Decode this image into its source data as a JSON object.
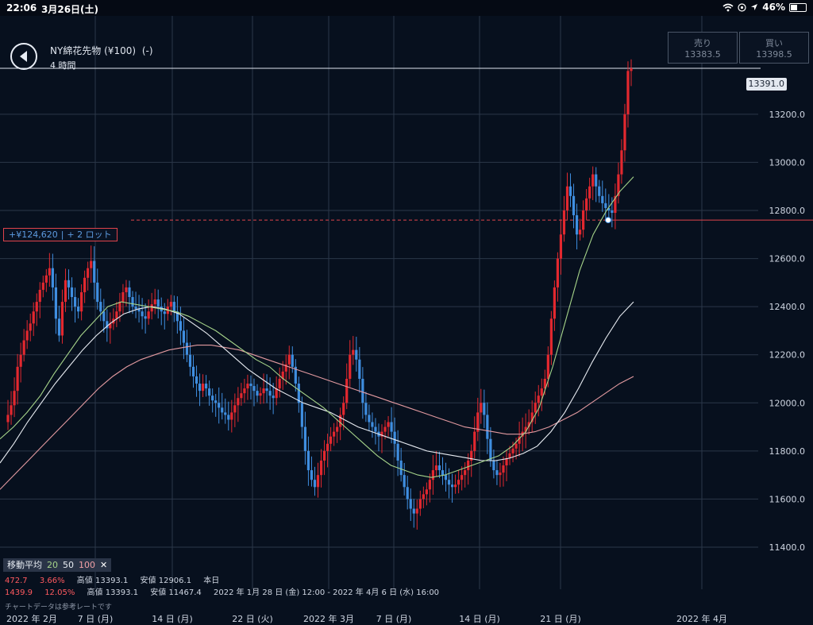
{
  "status_bar": {
    "time": "22:06",
    "date": "3月26日(土)",
    "battery": "46%",
    "icons": [
      "wifi-icon",
      "location-icon",
      "battery-icon"
    ]
  },
  "header": {
    "instrument": "NY綿花先物 (¥100)",
    "change": "(-)",
    "interval": "4 時間",
    "back_icon": "chevron-left-icon"
  },
  "quotes": {
    "sell_label": "売り",
    "sell_value": "13383.5",
    "buy_label": "買い",
    "buy_value": "13398.5"
  },
  "last_price_tag": "13391.0",
  "position": {
    "pnl": "+¥124,620",
    "lots": "+ 2 ロット"
  },
  "ma_legend": {
    "label": "移動平均",
    "p20": "20",
    "p50": "50",
    "p100": "100",
    "close_icon": "close-icon"
  },
  "info_rows": [
    {
      "change": "472.7",
      "pct": "3.66%",
      "high_label": "高値",
      "high": "13393.1",
      "low_label": "安値",
      "low": "12906.1",
      "range": "本日"
    },
    {
      "change": "1439.9",
      "pct": "12.05%",
      "high_label": "高値",
      "high": "13393.1",
      "low_label": "安値",
      "low": "11467.4",
      "range": "2022 年 1月 28 日 (金) 12:00 - 2022 年 4月 6 日 (水) 16:00"
    }
  ],
  "disclaimer": "チャートデータは参考レートです",
  "colors": {
    "background": "#07101e",
    "up": "#e3282f",
    "down": "#3f8ee0",
    "ma20": "#a6d48a",
    "ma50": "#e8ecf2",
    "ma100": "#e39aa0",
    "grid": "#2b3749",
    "position_line": "#e0434b"
  },
  "chart_data": {
    "type": "candlestick",
    "instrument": "NY綿花先物 (¥100)",
    "interval": "4 時間",
    "y_ticks": [
      11400,
      11600,
      11800,
      12000,
      12200,
      12400,
      12600,
      12800,
      13000,
      13200
    ],
    "y_tick_labels": [
      "11400.0",
      "11600.0",
      "11800.0",
      "12000.0",
      "12200.0",
      "12400.0",
      "12600.0",
      "12800.0",
      "13000.0",
      "13200.0"
    ],
    "x_tick_labels": [
      "2022 年 2月",
      "7 日 (月)",
      "14 日 (月)",
      "22 日 (火)",
      "2022 年 3月",
      "7 日 (月)",
      "14 日 (月)",
      "21 日 (月)",
      "2022 年 4月"
    ],
    "last_price": 13391.0,
    "position_price": 12760,
    "closes": [
      11920,
      11950,
      11990,
      12050,
      12150,
      12200,
      12260,
      12300,
      12330,
      12380,
      12420,
      12470,
      12500,
      12530,
      12560,
      12480,
      12350,
      12280,
      12420,
      12510,
      12480,
      12440,
      12400,
      12380,
      12460,
      12520,
      12560,
      12590,
      12500,
      12420,
      12380,
      12340,
      12310,
      12330,
      12350,
      12380,
      12420,
      12460,
      12480,
      12440,
      12400,
      12390,
      12380,
      12360,
      12350,
      12380,
      12410,
      12430,
      12400,
      12380,
      12370,
      12400,
      12420,
      12380,
      12340,
      12300,
      12250,
      12200,
      12150,
      12110,
      12080,
      12050,
      12080,
      12060,
      12030,
      12010,
      12000,
      11980,
      11960,
      11950,
      11930,
      11960,
      11990,
      12020,
      12040,
      12060,
      12080,
      12070,
      12050,
      12030,
      12040,
      12060,
      12050,
      12030,
      12020,
      12060,
      12100,
      12130,
      12160,
      12200,
      12150,
      12080,
      12000,
      11900,
      11800,
      11720,
      11680,
      11650,
      11700,
      11760,
      11800,
      11830,
      11860,
      11880,
      11900,
      11950,
      12000,
      12100,
      12200,
      12220,
      12180,
      12100,
      12000,
      11950,
      11920,
      11900,
      11880,
      11860,
      11880,
      11900,
      11920,
      11880,
      11830,
      11760,
      11700,
      11650,
      11600,
      11560,
      11540,
      11560,
      11600,
      11620,
      11640,
      11680,
      11720,
      11740,
      11720,
      11700,
      11680,
      11660,
      11650,
      11660,
      11680,
      11700,
      11720,
      11760,
      11800,
      11880,
      11960,
      12000,
      11950,
      11850,
      11760,
      11720,
      11700,
      11710,
      11740,
      11770,
      11790,
      11810,
      11830,
      11860,
      11880,
      11900,
      11920,
      11960,
      12000,
      12030,
      12060,
      12100,
      12200,
      12350,
      12480,
      12600,
      12700,
      12800,
      12900,
      12860,
      12780,
      12700,
      12720,
      12800,
      12850,
      12900,
      12950,
      12900,
      12860,
      12830,
      12810,
      12800,
      12790,
      12860,
      12950,
      13050,
      13200,
      13380,
      13391
    ],
    "ma20_approx": [
      11850,
      11900,
      11960,
      12030,
      12120,
      12200,
      12280,
      12340,
      12400,
      12420,
      12410,
      12400,
      12390,
      12380,
      12360,
      12330,
      12300,
      12260,
      12220,
      12180,
      12150,
      12100,
      12060,
      12020,
      11980,
      11930,
      11880,
      11830,
      11780,
      11740,
      11720,
      11700,
      11690,
      11700,
      11720,
      11740,
      11760,
      11780,
      11820,
      11880,
      11980,
      12150,
      12350,
      12550,
      12700,
      12800,
      12880,
      12940
    ],
    "ma50_approx": [
      11750,
      11830,
      11920,
      12000,
      12080,
      12150,
      12220,
      12280,
      12330,
      12370,
      12390,
      12400,
      12390,
      12370,
      12330,
      12290,
      12240,
      12190,
      12140,
      12100,
      12060,
      12030,
      12000,
      11980,
      11960,
      11930,
      11900,
      11880,
      11860,
      11840,
      11820,
      11800,
      11790,
      11780,
      11770,
      11760,
      11760,
      11770,
      11790,
      11820,
      11880,
      11960,
      12060,
      12170,
      12270,
      12360,
      12420
    ],
    "ma100_approx": [
      11640,
      11700,
      11760,
      11820,
      11880,
      11940,
      12000,
      12060,
      12110,
      12150,
      12180,
      12200,
      12220,
      12230,
      12240,
      12240,
      12230,
      12220,
      12200,
      12180,
      12160,
      12140,
      12120,
      12100,
      12080,
      12060,
      12040,
      12020,
      12000,
      11980,
      11960,
      11940,
      11920,
      11900,
      11890,
      11880,
      11870,
      11870,
      11880,
      11900,
      11930,
      11960,
      12000,
      12040,
      12080,
      12110
    ]
  }
}
